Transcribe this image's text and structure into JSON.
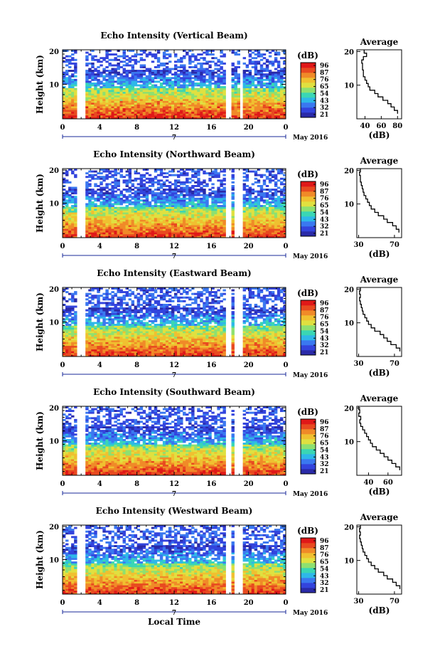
{
  "colors": {
    "scale": [
      "#2a2aa8",
      "#3344dd",
      "#3a78f0",
      "#2eb8e8",
      "#3ad6b4",
      "#8ee070",
      "#e0e040",
      "#f0c030",
      "#f08a28",
      "#e84a20",
      "#e01818"
    ]
  },
  "chart_data": [
    {
      "type": "heatmap",
      "title": "Echo Intensity (Vertical Beam)",
      "ylabel": "Height (km)",
      "y_ticks": [
        "20",
        "10"
      ],
      "x_ticks": [
        "0",
        "4",
        "8",
        "12",
        "16",
        "20",
        "0"
      ],
      "date_marker": "7",
      "date_label": "May 2016",
      "colorbar_unit": "(dB)",
      "colorbar_ticks": [
        "96",
        "87",
        "76",
        "65",
        "54",
        "43",
        "32",
        "21"
      ],
      "data_gaps_hours": [
        [
          1.6,
          2.6
        ],
        [
          5.4,
          5.6
        ],
        [
          17.5,
          18.3
        ],
        [
          19.0,
          19.5
        ]
      ],
      "profile": {
        "title": "Average",
        "xlabel": "(dB)",
        "x_ticks": [
          "40",
          "60",
          "80"
        ],
        "y_ticks": [
          "20",
          "10"
        ],
        "xlim": [
          30,
          85
        ],
        "height_km": [
          2,
          3,
          4,
          5,
          6,
          7,
          8,
          9,
          10,
          11,
          12,
          13,
          14,
          15,
          16,
          17,
          18,
          19,
          20
        ],
        "value_db": [
          80,
          76,
          72,
          68,
          62,
          56,
          52,
          46,
          44,
          42,
          40,
          38,
          38,
          37,
          37,
          36,
          38,
          42,
          39
        ]
      }
    },
    {
      "type": "heatmap",
      "title": "Echo Intensity (Northward Beam)",
      "ylabel": "Height (km)",
      "y_ticks": [
        "20",
        "10"
      ],
      "x_ticks": [
        "0",
        "4",
        "8",
        "12",
        "16",
        "20",
        "0"
      ],
      "date_marker": "7",
      "date_label": "May 2016",
      "colorbar_unit": "(dB)",
      "colorbar_ticks": [
        "96",
        "87",
        "76",
        "65",
        "54",
        "43",
        "32",
        "21"
      ],
      "data_gaps_hours": [
        [
          1.6,
          2.6
        ],
        [
          5.4,
          5.6
        ],
        [
          17.5,
          18.0
        ],
        [
          18.6,
          19.5
        ]
      ],
      "profile": {
        "title": "Average",
        "xlabel": "(dB)",
        "x_ticks": [
          "30",
          "70"
        ],
        "y_ticks": [
          "20",
          "10"
        ],
        "xlim": [
          28,
          78
        ],
        "height_km": [
          2,
          3,
          4,
          5,
          6,
          7,
          8,
          9,
          10,
          11,
          12,
          13,
          14,
          15,
          16,
          17,
          18,
          19,
          20
        ],
        "value_db": [
          75,
          72,
          68,
          62,
          58,
          52,
          48,
          44,
          42,
          40,
          38,
          36,
          35,
          34,
          33,
          32,
          32,
          31,
          32
        ]
      }
    },
    {
      "type": "heatmap",
      "title": "Echo Intensity (Eastward Beam)",
      "ylabel": "Height (km)",
      "y_ticks": [
        "20",
        "10"
      ],
      "x_ticks": [
        "0",
        "4",
        "8",
        "12",
        "16",
        "20",
        "0"
      ],
      "date_marker": "7",
      "date_label": "May 2016",
      "colorbar_unit": "(dB)",
      "colorbar_ticks": [
        "96",
        "87",
        "76",
        "65",
        "54",
        "43",
        "32",
        "21"
      ],
      "data_gaps_hours": [
        [
          1.6,
          2.6
        ],
        [
          5.4,
          5.6
        ],
        [
          17.5,
          18.0
        ],
        [
          18.6,
          19.5
        ]
      ],
      "profile": {
        "title": "Average",
        "xlabel": "(dB)",
        "x_ticks": [
          "30",
          "70"
        ],
        "y_ticks": [
          "20",
          "10"
        ],
        "xlim": [
          28,
          78
        ],
        "height_km": [
          2,
          3,
          4,
          5,
          6,
          7,
          8,
          9,
          10,
          11,
          12,
          13,
          14,
          15,
          16,
          17,
          18,
          19,
          20
        ],
        "value_db": [
          76,
          72,
          66,
          62,
          58,
          54,
          48,
          44,
          41,
          39,
          37,
          35,
          34,
          33,
          32,
          31,
          32,
          31,
          32
        ]
      }
    },
    {
      "type": "heatmap",
      "title": "Echo Intensity (Southward Beam)",
      "ylabel": "Height (km)",
      "y_ticks": [
        "20",
        "10"
      ],
      "x_ticks": [
        "0",
        "4",
        "8",
        "12",
        "16",
        "20",
        "0"
      ],
      "date_marker": "7",
      "date_label": "May 2016",
      "colorbar_unit": "(dB)",
      "colorbar_ticks": [
        "96",
        "87",
        "76",
        "65",
        "54",
        "43",
        "32",
        "21"
      ],
      "data_gaps_hours": [
        [
          1.6,
          2.6
        ],
        [
          5.4,
          5.6
        ],
        [
          17.5,
          18.0
        ],
        [
          18.6,
          19.5
        ]
      ],
      "profile": {
        "title": "Average",
        "xlabel": "(dB)",
        "x_ticks": [
          "40",
          "60"
        ],
        "y_ticks": [
          "20",
          "10"
        ],
        "xlim": [
          28,
          74
        ],
        "height_km": [
          2,
          3,
          4,
          5,
          6,
          7,
          8,
          9,
          10,
          11,
          12,
          13,
          14,
          15,
          16,
          17,
          18,
          19,
          20
        ],
        "value_db": [
          72,
          68,
          64,
          60,
          56,
          52,
          48,
          44,
          42,
          40,
          38,
          36,
          34,
          32,
          31,
          32,
          30,
          31,
          30
        ]
      }
    },
    {
      "type": "heatmap",
      "title": "Echo Intensity (Westward Beam)",
      "ylabel": "Height (km)",
      "y_ticks": [
        "20",
        "10"
      ],
      "x_ticks": [
        "0",
        "4",
        "8",
        "12",
        "16",
        "20",
        "0"
      ],
      "date_marker": "7",
      "date_label": "May 2016",
      "xlabel": "Local Time",
      "colorbar_unit": "(dB)",
      "colorbar_ticks": [
        "96",
        "87",
        "76",
        "65",
        "54",
        "43",
        "32",
        "21"
      ],
      "data_gaps_hours": [
        [
          1.6,
          2.6
        ],
        [
          5.4,
          5.6
        ],
        [
          17.5,
          18.0
        ],
        [
          18.6,
          19.5
        ]
      ],
      "profile": {
        "title": "Average",
        "xlabel": "(dB)",
        "x_ticks": [
          "30",
          "70"
        ],
        "y_ticks": [
          "20",
          "10"
        ],
        "xlim": [
          28,
          78
        ],
        "height_km": [
          2,
          3,
          4,
          5,
          6,
          7,
          8,
          9,
          10,
          11,
          12,
          13,
          14,
          15,
          16,
          17,
          18,
          19,
          20
        ],
        "value_db": [
          76,
          72,
          68,
          62,
          58,
          52,
          48,
          44,
          41,
          39,
          37,
          35,
          34,
          33,
          32,
          31,
          32,
          31,
          32
        ]
      }
    }
  ]
}
